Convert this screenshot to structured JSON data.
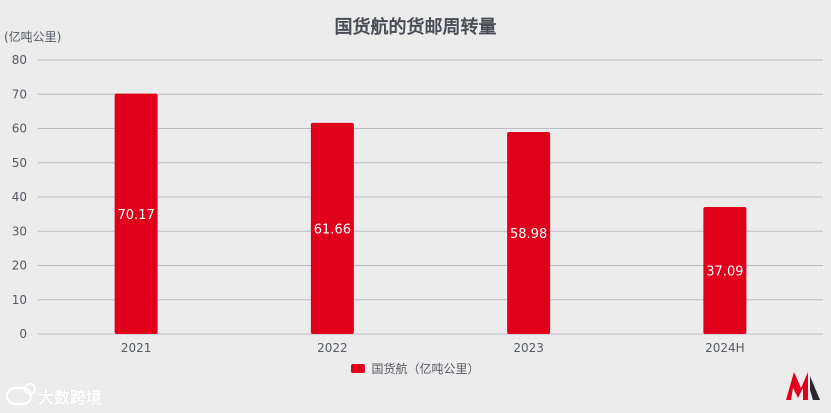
{
  "title": "国货航的货邮周转量",
  "colors": {
    "bar": "#e0001b",
    "grid": "#b9bcc4",
    "axis_text": "#555a63",
    "background": "#ececec"
  },
  "chart_data": {
    "type": "bar",
    "title": "国货航的货邮周转量",
    "ylabel": "(亿吨公里)",
    "xlabel": "",
    "categories": [
      "2021",
      "2022",
      "2023",
      "2024H"
    ],
    "series": [
      {
        "name": "国货航（亿吨公里）",
        "values": [
          70.17,
          61.66,
          58.98,
          37.09
        ]
      }
    ],
    "data_labels": [
      "70.17",
      "61.66",
      "58.98",
      "37.09"
    ],
    "ylim": [
      0,
      80
    ],
    "yticks": [
      0,
      10,
      20,
      30,
      40,
      50,
      60,
      70,
      80
    ],
    "grid": true,
    "legend_position": "bottom"
  },
  "watermark": {
    "text": "大数跨境",
    "icon": "camera-loop-icon"
  },
  "brand_logo": {
    "icon": "m-logo-icon"
  }
}
